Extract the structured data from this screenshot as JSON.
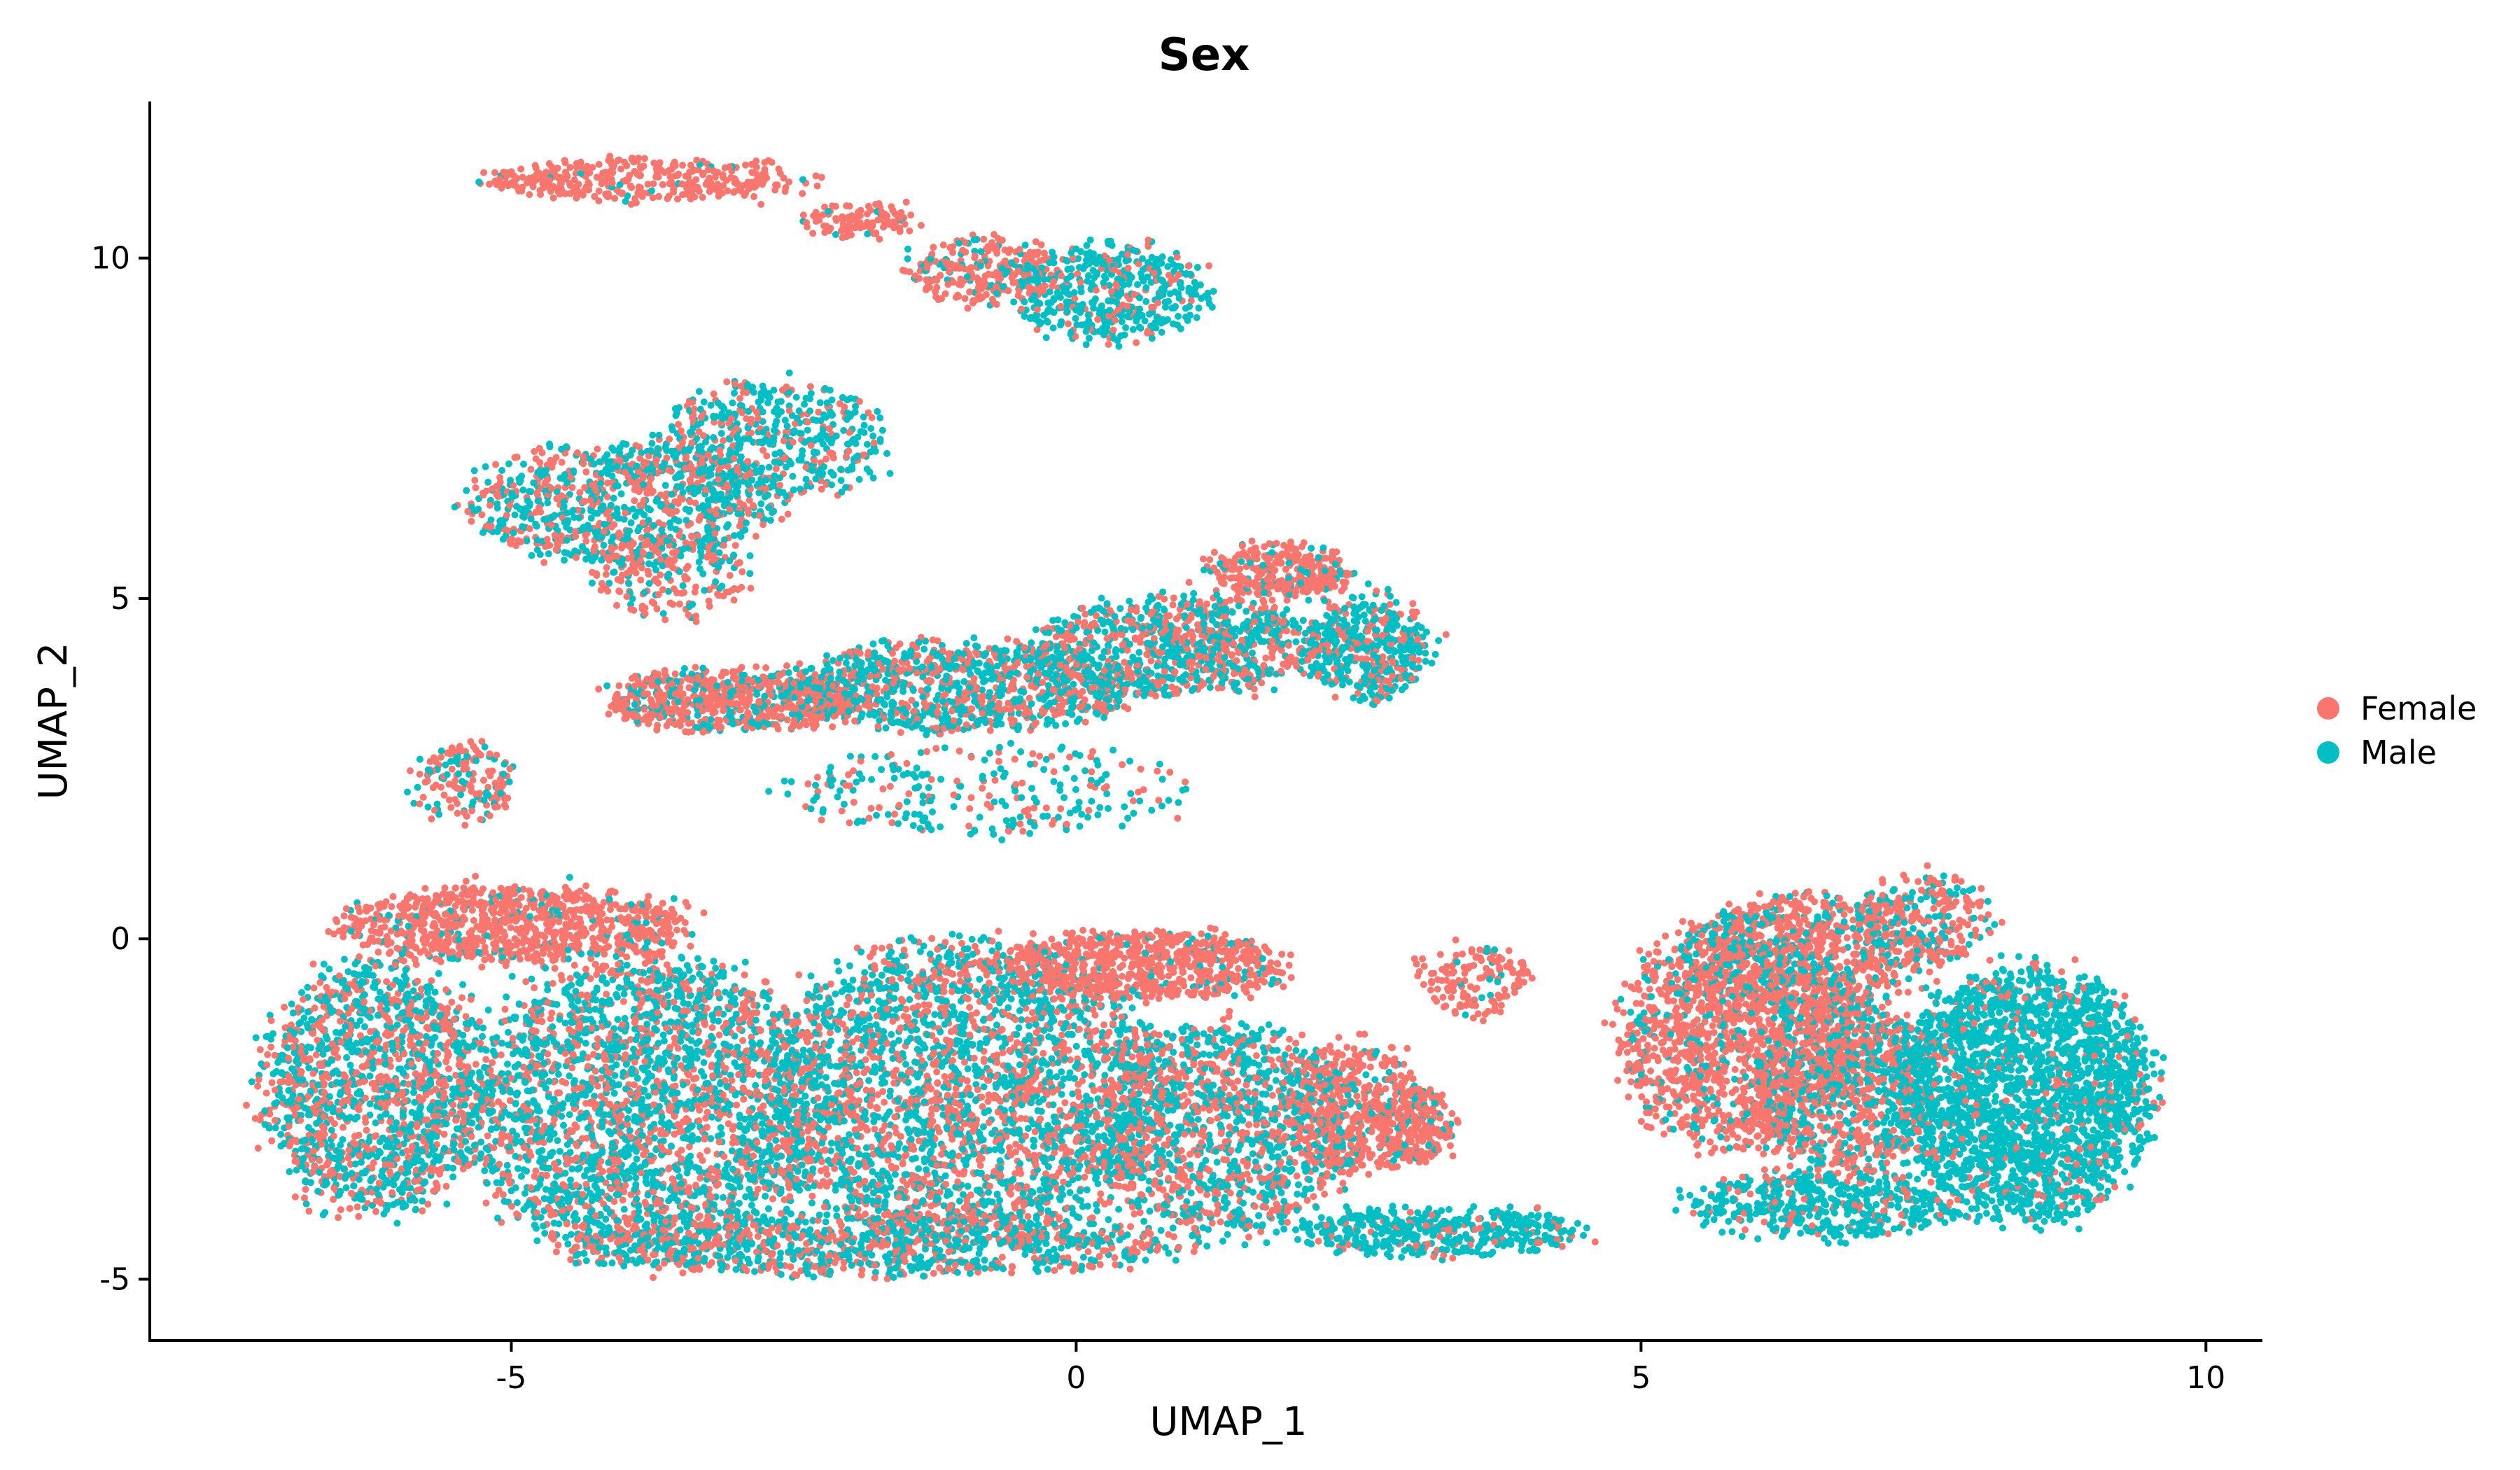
{
  "chart_data": {
    "type": "scatter",
    "title": "Sex",
    "xlabel": "UMAP_1",
    "ylabel": "UMAP_2",
    "xlim": [
      -8.2,
      10.5
    ],
    "ylim": [
      -5.9,
      12.3
    ],
    "xticks": [
      -5,
      0,
      5,
      10
    ],
    "yticks": [
      -5,
      0,
      5,
      10
    ],
    "xtick_labels": [
      "-5",
      "0",
      "5",
      "10"
    ],
    "ytick_labels": [
      "-5",
      "0",
      "5",
      "10"
    ],
    "grid": false,
    "legend_position": "right",
    "series": [
      {
        "name": "Female",
        "color": "#F8766D"
      },
      {
        "name": "Male",
        "color": "#00BFC4"
      }
    ],
    "clusters": [
      {
        "cx": -3.8,
        "cy": 11.15,
        "rx": 1.5,
        "ry": 0.3,
        "n": 360,
        "female": 0.96
      },
      {
        "cx": -1.9,
        "cy": 10.55,
        "rx": 0.5,
        "ry": 0.22,
        "n": 110,
        "female": 0.95
      },
      {
        "cx": -0.8,
        "cy": 9.8,
        "rx": 0.7,
        "ry": 0.5,
        "n": 260,
        "female": 0.78
      },
      {
        "cx": 0.3,
        "cy": 9.5,
        "rx": 0.85,
        "ry": 0.75,
        "n": 480,
        "female": 0.22
      },
      {
        "cx": -4.0,
        "cy": 6.4,
        "rx": 1.4,
        "ry": 0.9,
        "n": 900,
        "female": 0.45
      },
      {
        "cx": -2.7,
        "cy": 7.3,
        "rx": 1.0,
        "ry": 0.9,
        "n": 520,
        "female": 0.35
      },
      {
        "cx": -3.6,
        "cy": 5.3,
        "rx": 0.7,
        "ry": 0.6,
        "n": 200,
        "female": 0.7
      },
      {
        "cx": -3.0,
        "cy": 3.5,
        "rx": 1.2,
        "ry": 0.45,
        "n": 700,
        "female": 0.7
      },
      {
        "cx": -1.0,
        "cy": 3.7,
        "rx": 1.6,
        "ry": 0.65,
        "n": 1000,
        "female": 0.45
      },
      {
        "cx": 0.9,
        "cy": 4.3,
        "rx": 1.3,
        "ry": 0.7,
        "n": 900,
        "female": 0.45
      },
      {
        "cx": 1.8,
        "cy": 5.4,
        "rx": 0.65,
        "ry": 0.4,
        "n": 300,
        "female": 0.88
      },
      {
        "cx": 2.6,
        "cy": 4.3,
        "rx": 0.55,
        "ry": 0.8,
        "n": 420,
        "female": 0.3
      },
      {
        "cx": -0.8,
        "cy": 2.2,
        "rx": 1.8,
        "ry": 0.65,
        "n": 260,
        "female": 0.35
      },
      {
        "cx": -5.4,
        "cy": 2.3,
        "rx": 0.5,
        "ry": 0.6,
        "n": 160,
        "female": 0.65
      },
      {
        "cx": -5.0,
        "cy": 0.2,
        "rx": 1.6,
        "ry": 0.55,
        "n": 900,
        "female": 0.9
      },
      {
        "cx": -6.2,
        "cy": -2.2,
        "rx": 1.0,
        "ry": 1.9,
        "n": 1500,
        "female": 0.45
      },
      {
        "cx": -3.8,
        "cy": -2.5,
        "rx": 1.6,
        "ry": 2.3,
        "n": 2600,
        "female": 0.4
      },
      {
        "cx": -1.0,
        "cy": -2.3,
        "rx": 1.8,
        "ry": 2.3,
        "n": 2800,
        "female": 0.45
      },
      {
        "cx": 0.6,
        "cy": -0.4,
        "rx": 1.3,
        "ry": 0.5,
        "n": 700,
        "female": 0.88
      },
      {
        "cx": 1.3,
        "cy": -2.8,
        "rx": 1.2,
        "ry": 1.6,
        "n": 1300,
        "female": 0.45
      },
      {
        "cx": -1.8,
        "cy": -4.5,
        "rx": 2.8,
        "ry": 0.45,
        "n": 900,
        "female": 0.45
      },
      {
        "cx": 2.5,
        "cy": -2.5,
        "rx": 0.6,
        "ry": 1.0,
        "n": 450,
        "female": 0.82
      },
      {
        "cx": 3.0,
        "cy": -2.7,
        "rx": 0.35,
        "ry": 0.55,
        "n": 200,
        "female": 0.85
      },
      {
        "cx": 3.5,
        "cy": -0.6,
        "rx": 0.5,
        "ry": 0.55,
        "n": 150,
        "female": 0.92
      },
      {
        "cx": 3.2,
        "cy": -4.3,
        "rx": 1.3,
        "ry": 0.35,
        "n": 450,
        "female": 0.15
      },
      {
        "cx": 5.9,
        "cy": -1.4,
        "rx": 1.1,
        "ry": 1.7,
        "n": 1500,
        "female": 0.78
      },
      {
        "cx": 6.8,
        "cy": -2.2,
        "rx": 0.8,
        "ry": 1.3,
        "n": 900,
        "female": 0.6
      },
      {
        "cx": 6.5,
        "cy": -0.2,
        "rx": 1.1,
        "ry": 0.9,
        "n": 700,
        "female": 0.7
      },
      {
        "cx": 8.4,
        "cy": -2.3,
        "rx": 1.15,
        "ry": 1.9,
        "n": 2300,
        "female": 0.12
      },
      {
        "cx": 7.5,
        "cy": 0.3,
        "rx": 0.6,
        "ry": 0.7,
        "n": 250,
        "female": 0.6
      },
      {
        "cx": 6.6,
        "cy": -3.9,
        "rx": 1.2,
        "ry": 0.5,
        "n": 500,
        "female": 0.2
      }
    ]
  }
}
